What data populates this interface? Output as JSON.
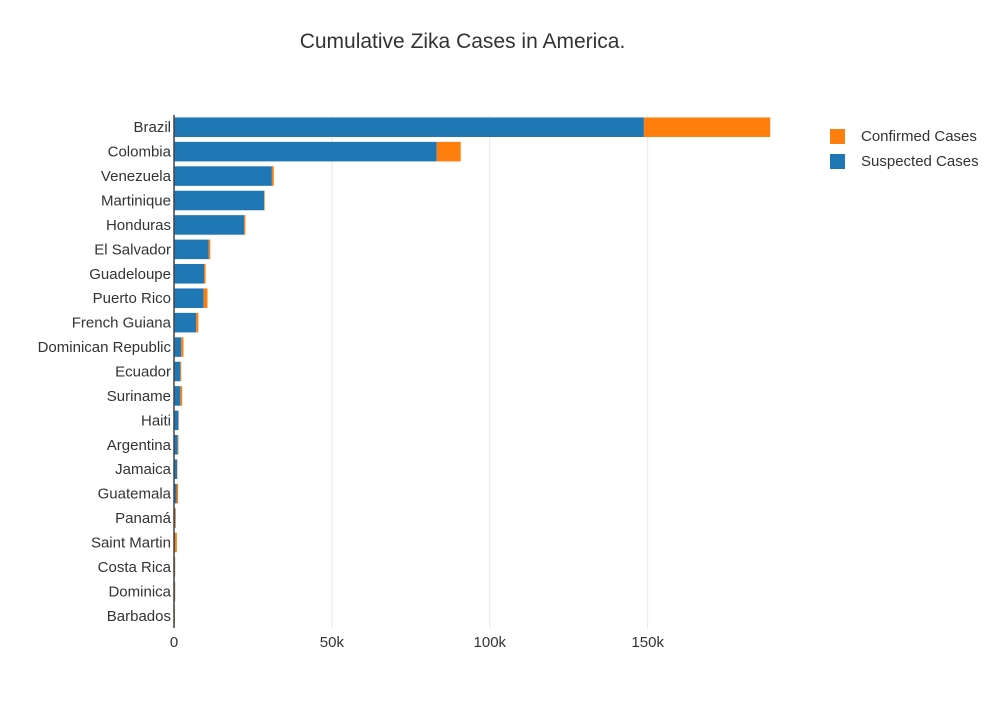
{
  "chart_data": {
    "type": "bar",
    "orientation": "horizontal",
    "stacked": true,
    "title": "Cumulative Zika Cases in America.",
    "xlabel": "",
    "ylabel": "",
    "xlim": [
      0,
      190000
    ],
    "x_ticks": [
      0,
      50000,
      100000,
      150000
    ],
    "x_tick_labels": [
      "0",
      "50k",
      "100k",
      "150k"
    ],
    "grid": "vertical",
    "legend_position": "top-right",
    "categories": [
      "Brazil",
      "Colombia",
      "Venezuela",
      "Martinique",
      "Honduras",
      "El Salvador",
      "Guadeloupe",
      "Puerto Rico",
      "French Guiana",
      "Dominican Republic",
      "Ecuador",
      "Suriname",
      "Haiti",
      "Argentina",
      "Jamaica",
      "Guatemala",
      "Panamá",
      "Saint Martin",
      "Costa Rica",
      "Dominica",
      "Barbados"
    ],
    "series": [
      {
        "name": "Suspected Cases",
        "color": "#1f77b4",
        "values": [
          148800,
          83200,
          31000,
          28500,
          22200,
          11000,
          9500,
          9400,
          7000,
          2300,
          2000,
          2000,
          1400,
          1200,
          1000,
          800,
          400,
          300,
          300,
          300,
          200
        ]
      },
      {
        "name": "Confirmed Cases",
        "color": "#ff7f0e",
        "values": [
          40000,
          7600,
          600,
          200,
          400,
          500,
          500,
          1200,
          700,
          700,
          300,
          600,
          100,
          200,
          100,
          500,
          200,
          600,
          100,
          100,
          100
        ]
      }
    ],
    "legend": [
      {
        "name": "Confirmed Cases",
        "color": "#ff7f0e"
      },
      {
        "name": "Suspected Cases",
        "color": "#1f77b4"
      }
    ]
  }
}
